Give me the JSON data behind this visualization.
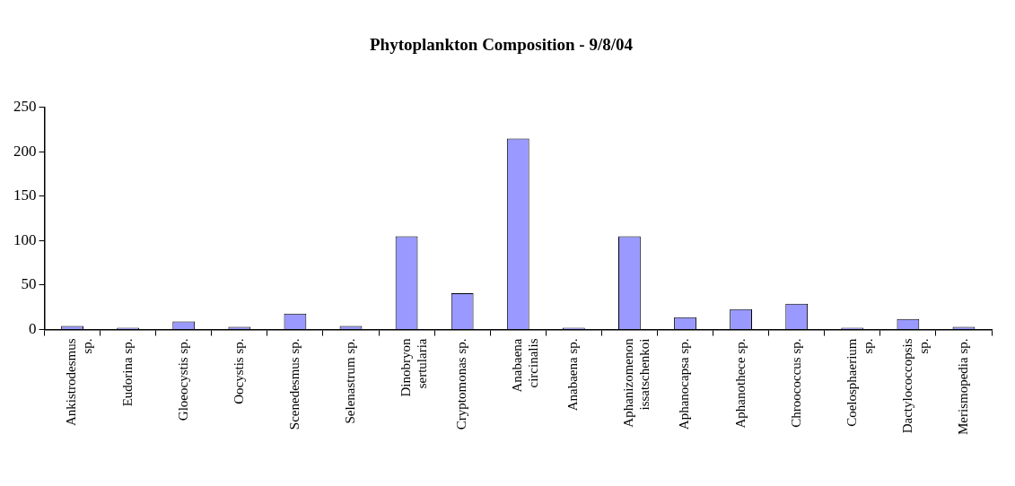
{
  "chart_data": {
    "type": "bar",
    "title": "Phytoplankton Composition - 9/8/04",
    "categories": [
      "Ankistrodesmus sp.",
      "Eudorina sp.",
      "Gloeocystis sp.",
      "Oocystis sp.",
      "Scenedesmus sp.",
      "Selenastrum sp.",
      "Dinobryon sertularia",
      "Cryptomonas sp.",
      "Anabaena circinalis",
      "Anabaena sp.",
      "Aphanizomenon issatschenkoi",
      "Aphanocapsa sp.",
      "Aphanothece sp.",
      "Chroococcus sp.",
      "Coelosphaerium sp.",
      "Dactylococcopsis sp.",
      "Merismopedia sp."
    ],
    "values": [
      4,
      2,
      9,
      3,
      18,
      4,
      105,
      41,
      215,
      2,
      105,
      14,
      23,
      29,
      2,
      12,
      3
    ],
    "color": "#9999ff",
    "ylim": [
      0,
      250
    ],
    "yticks": [
      0,
      50,
      100,
      150,
      200,
      250
    ],
    "grid": false,
    "legend": false
  }
}
